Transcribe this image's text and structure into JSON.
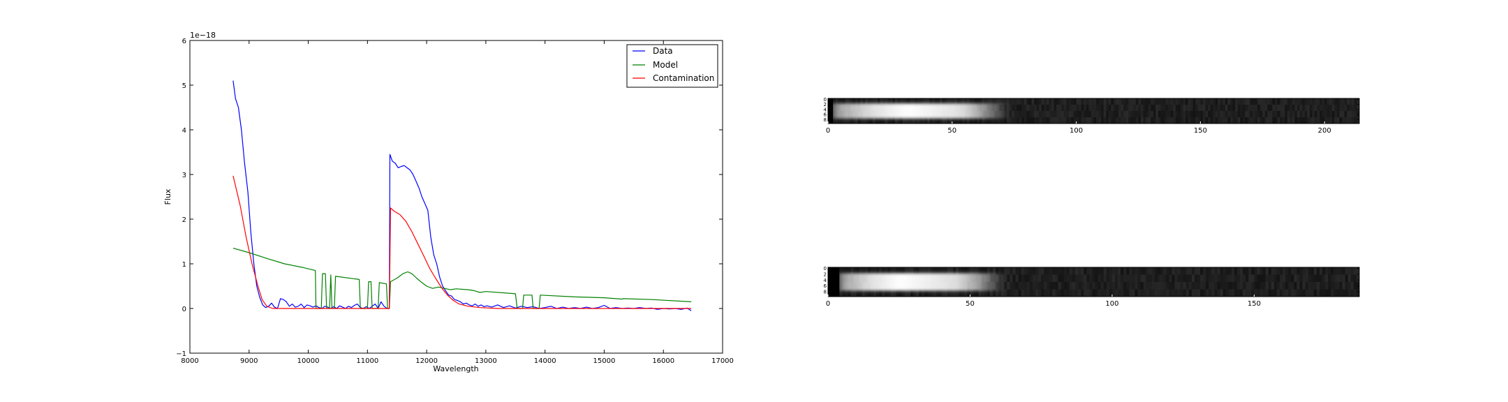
{
  "chart_data": [
    {
      "type": "line",
      "xlabel": "Wavelength",
      "ylabel": "Flux",
      "offset_label": "1e−18",
      "xlim": [
        8000,
        17000
      ],
      "ylim": [
        -1,
        6
      ],
      "x_ticks": [
        8000,
        9000,
        10000,
        11000,
        12000,
        13000,
        14000,
        15000,
        16000,
        17000
      ],
      "x_tick_labels": [
        "8000",
        "9000",
        "10000",
        "11000",
        "12000",
        "13000",
        "14000",
        "15000",
        "16000",
        "17000"
      ],
      "y_ticks": [
        -1,
        0,
        1,
        2,
        3,
        4,
        5,
        6
      ],
      "y_tick_labels": [
        "−1",
        "0",
        "1",
        "2",
        "3",
        "4",
        "5",
        "6"
      ],
      "legend_position": "top-right",
      "grid": false,
      "series": [
        {
          "name": "Data",
          "color": "#0000ff",
          "points": [
            [
              8730,
              5.1
            ],
            [
              8770,
              4.7
            ],
            [
              8820,
              4.5
            ],
            [
              8870,
              4.0
            ],
            [
              8920,
              3.3
            ],
            [
              8980,
              2.6
            ],
            [
              9030,
              1.7
            ],
            [
              9080,
              1.0
            ],
            [
              9130,
              0.5
            ],
            [
              9180,
              0.25
            ],
            [
              9230,
              0.08
            ],
            [
              9280,
              0.02
            ],
            [
              9330,
              0.05
            ],
            [
              9380,
              0.12
            ],
            [
              9430,
              0.03
            ],
            [
              9480,
              0.0
            ],
            [
              9530,
              0.22
            ],
            [
              9580,
              0.2
            ],
            [
              9630,
              0.15
            ],
            [
              9680,
              0.05
            ],
            [
              9730,
              0.1
            ],
            [
              9780,
              0.03
            ],
            [
              9830,
              0.05
            ],
            [
              9880,
              0.1
            ],
            [
              9930,
              0.02
            ],
            [
              9980,
              0.08
            ],
            [
              10030,
              0.06
            ],
            [
              10080,
              0.03
            ],
            [
              10130,
              0.06
            ],
            [
              10180,
              0.02
            ],
            [
              10230,
              0.0
            ],
            [
              10280,
              0.05
            ],
            [
              10330,
              0.03
            ],
            [
              10380,
              0.0
            ],
            [
              10430,
              0.04
            ],
            [
              10480,
              0.0
            ],
            [
              10530,
              0.06
            ],
            [
              10580,
              0.03
            ],
            [
              10630,
              0.0
            ],
            [
              10680,
              0.05
            ],
            [
              10730,
              0.02
            ],
            [
              10780,
              0.07
            ],
            [
              10830,
              0.1
            ],
            [
              10880,
              0.02
            ],
            [
              10930,
              0.0
            ],
            [
              10980,
              0.04
            ],
            [
              11030,
              0.0
            ],
            [
              11080,
              0.05
            ],
            [
              11130,
              0.1
            ],
            [
              11180,
              0.0
            ],
            [
              11230,
              0.15
            ],
            [
              11280,
              0.05
            ],
            [
              11330,
              0.0
            ],
            [
              11370,
              0.0
            ],
            [
              11380,
              3.45
            ],
            [
              11420,
              3.3
            ],
            [
              11470,
              3.25
            ],
            [
              11520,
              3.15
            ],
            [
              11570,
              3.18
            ],
            [
              11620,
              3.2
            ],
            [
              11670,
              3.15
            ],
            [
              11720,
              3.1
            ],
            [
              11770,
              3.0
            ],
            [
              11820,
              2.85
            ],
            [
              11870,
              2.7
            ],
            [
              11920,
              2.5
            ],
            [
              11970,
              2.35
            ],
            [
              12020,
              2.2
            ],
            [
              12070,
              1.6
            ],
            [
              12120,
              1.2
            ],
            [
              12170,
              1.0
            ],
            [
              12220,
              0.7
            ],
            [
              12270,
              0.5
            ],
            [
              12320,
              0.4
            ],
            [
              12370,
              0.3
            ],
            [
              12420,
              0.28
            ],
            [
              12470,
              0.2
            ],
            [
              12520,
              0.18
            ],
            [
              12570,
              0.15
            ],
            [
              12620,
              0.1
            ],
            [
              12670,
              0.12
            ],
            [
              12720,
              0.08
            ],
            [
              12770,
              0.06
            ],
            [
              12820,
              0.1
            ],
            [
              12870,
              0.05
            ],
            [
              12920,
              0.08
            ],
            [
              12970,
              0.04
            ],
            [
              13020,
              0.06
            ],
            [
              13100,
              0.03
            ],
            [
              13200,
              0.08
            ],
            [
              13300,
              0.02
            ],
            [
              13400,
              0.06
            ],
            [
              13500,
              0.01
            ],
            [
              13600,
              0.05
            ],
            [
              13700,
              0.02
            ],
            [
              13800,
              0.04
            ],
            [
              13900,
              0.0
            ],
            [
              14000,
              0.02
            ],
            [
              14100,
              0.05
            ],
            [
              14200,
              0.0
            ],
            [
              14300,
              0.03
            ],
            [
              14400,
              0.0
            ],
            [
              14500,
              0.02
            ],
            [
              14600,
              0.0
            ],
            [
              14700,
              0.03
            ],
            [
              14800,
              0.0
            ],
            [
              14900,
              0.02
            ],
            [
              15000,
              0.07
            ],
            [
              15100,
              0.0
            ],
            [
              15200,
              0.02
            ],
            [
              15300,
              0.0
            ],
            [
              15400,
              0.01
            ],
            [
              15500,
              0.0
            ],
            [
              15600,
              0.02
            ],
            [
              15700,
              0.0
            ],
            [
              15800,
              0.01
            ],
            [
              15900,
              -0.02
            ],
            [
              16000,
              0.0
            ],
            [
              16100,
              -0.01
            ],
            [
              16200,
              0.0
            ],
            [
              16300,
              -0.02
            ],
            [
              16400,
              0.01
            ],
            [
              16470,
              -0.05
            ]
          ]
        },
        {
          "name": "Model",
          "color": "#008000",
          "points": [
            [
              8730,
              1.35
            ],
            [
              9000,
              1.25
            ],
            [
              9300,
              1.12
            ],
            [
              9600,
              1.0
            ],
            [
              9900,
              0.92
            ],
            [
              10120,
              0.85
            ],
            [
              10130,
              0.0
            ],
            [
              10220,
              0.0
            ],
            [
              10240,
              0.78
            ],
            [
              10290,
              0.78
            ],
            [
              10310,
              0.0
            ],
            [
              10360,
              0.0
            ],
            [
              10380,
              0.75
            ],
            [
              10400,
              0.0
            ],
            [
              10440,
              0.0
            ],
            [
              10460,
              0.72
            ],
            [
              10860,
              0.65
            ],
            [
              10880,
              0.0
            ],
            [
              11000,
              0.0
            ],
            [
              11020,
              0.6
            ],
            [
              11060,
              0.6
            ],
            [
              11080,
              0.0
            ],
            [
              11180,
              0.0
            ],
            [
              11200,
              0.58
            ],
            [
              11320,
              0.55
            ],
            [
              11340,
              0.0
            ],
            [
              11370,
              0.0
            ],
            [
              11390,
              0.6
            ],
            [
              11500,
              0.68
            ],
            [
              11600,
              0.78
            ],
            [
              11680,
              0.82
            ],
            [
              11750,
              0.78
            ],
            [
              11830,
              0.68
            ],
            [
              11920,
              0.58
            ],
            [
              12000,
              0.5
            ],
            [
              12100,
              0.45
            ],
            [
              12200,
              0.48
            ],
            [
              12300,
              0.45
            ],
            [
              12400,
              0.42
            ],
            [
              12500,
              0.44
            ],
            [
              12700,
              0.42
            ],
            [
              12800,
              0.4
            ],
            [
              12900,
              0.36
            ],
            [
              13000,
              0.38
            ],
            [
              13500,
              0.33
            ],
            [
              13530,
              0.0
            ],
            [
              13620,
              0.0
            ],
            [
              13640,
              0.3
            ],
            [
              13780,
              0.3
            ],
            [
              13800,
              0.0
            ],
            [
              13900,
              0.0
            ],
            [
              13920,
              0.3
            ],
            [
              14500,
              0.26
            ],
            [
              15000,
              0.24
            ],
            [
              15300,
              0.21
            ],
            [
              15320,
              0.22
            ],
            [
              15800,
              0.2
            ],
            [
              16470,
              0.15
            ]
          ]
        },
        {
          "name": "Contamination",
          "color": "#ff0000",
          "points": [
            [
              8730,
              2.97
            ],
            [
              8850,
              2.3
            ],
            [
              8950,
              1.6
            ],
            [
              9050,
              1.0
            ],
            [
              9150,
              0.5
            ],
            [
              9220,
              0.2
            ],
            [
              9300,
              0.05
            ],
            [
              9400,
              0.0
            ],
            [
              11370,
              0.0
            ],
            [
              11390,
              2.25
            ],
            [
              11450,
              2.18
            ],
            [
              11550,
              2.1
            ],
            [
              11650,
              1.95
            ],
            [
              11750,
              1.72
            ],
            [
              11850,
              1.45
            ],
            [
              11950,
              1.18
            ],
            [
              12050,
              0.9
            ],
            [
              12150,
              0.68
            ],
            [
              12250,
              0.47
            ],
            [
              12350,
              0.3
            ],
            [
              12450,
              0.18
            ],
            [
              12550,
              0.1
            ],
            [
              12700,
              0.05
            ],
            [
              12900,
              0.02
            ],
            [
              13200,
              0.0
            ],
            [
              16470,
              0.0
            ]
          ]
        }
      ]
    },
    {
      "type": "heatmap",
      "colormap": "gray",
      "xlim": [
        0,
        214
      ],
      "ylim": [
        0,
        10
      ],
      "x_ticks": [
        0,
        50,
        100,
        150,
        200
      ],
      "x_tick_labels": [
        "0",
        "50",
        "100",
        "150",
        "200"
      ],
      "y_ticks": [
        0,
        2,
        4,
        6,
        8
      ],
      "y_tick_labels": [
        "0",
        "2",
        "4",
        "6",
        "8"
      ],
      "bright_region": [
        2,
        73
      ],
      "peak_column": 32,
      "edge_dark_columns": 2
    },
    {
      "type": "heatmap",
      "colormap": "gray",
      "xlim": [
        0,
        187
      ],
      "ylim": [
        0,
        10
      ],
      "x_ticks": [
        0,
        50,
        100,
        150
      ],
      "x_tick_labels": [
        "0",
        "50",
        "100",
        "150"
      ],
      "y_ticks": [
        0,
        2,
        4,
        6,
        8
      ],
      "y_tick_labels": [
        "0",
        "2",
        "4",
        "6",
        "8"
      ],
      "bright_region": [
        4,
        62
      ],
      "peak_column": 25,
      "edge_dark_columns": 4
    }
  ]
}
